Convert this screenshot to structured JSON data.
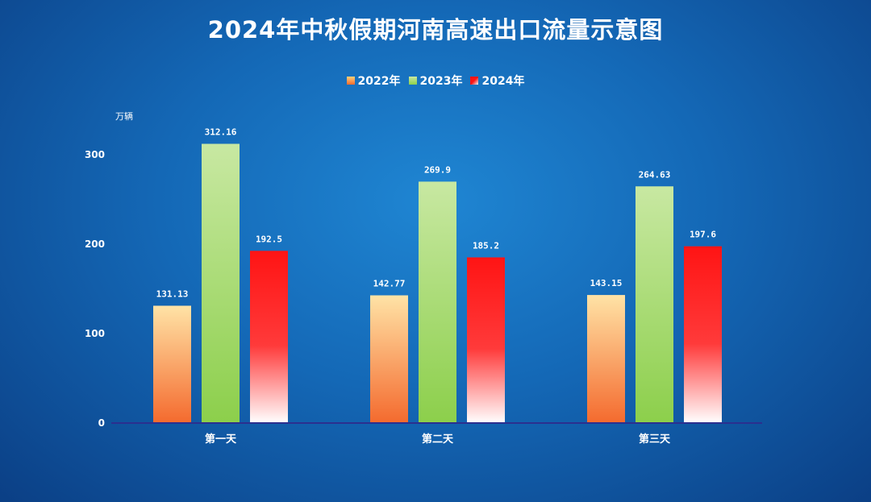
{
  "chart_data": {
    "type": "bar",
    "title": "2024年中秋假期河南高速出口流量示意图",
    "ylabel": "万辆",
    "categories": [
      "第一天",
      "第二天",
      "第三天"
    ],
    "series": [
      {
        "name": "2022年",
        "values": [
          131.13,
          142.77,
          143.15
        ],
        "value_labels": [
          "131.13",
          "142.77",
          "143.15"
        ]
      },
      {
        "name": "2023年",
        "values": [
          312.16,
          269.9,
          264.63
        ],
        "value_labels": [
          "312.16",
          "269.9",
          "264.63"
        ]
      },
      {
        "name": "2024年",
        "values": [
          192.5,
          185.2,
          197.6
        ],
        "value_labels": [
          "192.5",
          "185.2",
          "197.6"
        ]
      }
    ],
    "yticks": [
      "0",
      "100",
      "200",
      "300"
    ],
    "ylim": [
      0,
      330
    ],
    "legend_position": "top-center",
    "grid": false
  },
  "colors": {
    "s2022_top": "#ffe3a6",
    "s2022_bottom": "#f46a2e",
    "s2023_top": "#c8e8a2",
    "s2023_bottom": "#8ccf4b",
    "s2024_top": "#ff1414",
    "s2024_bottom": "#ffffff",
    "axis": "#2b2f8f"
  }
}
